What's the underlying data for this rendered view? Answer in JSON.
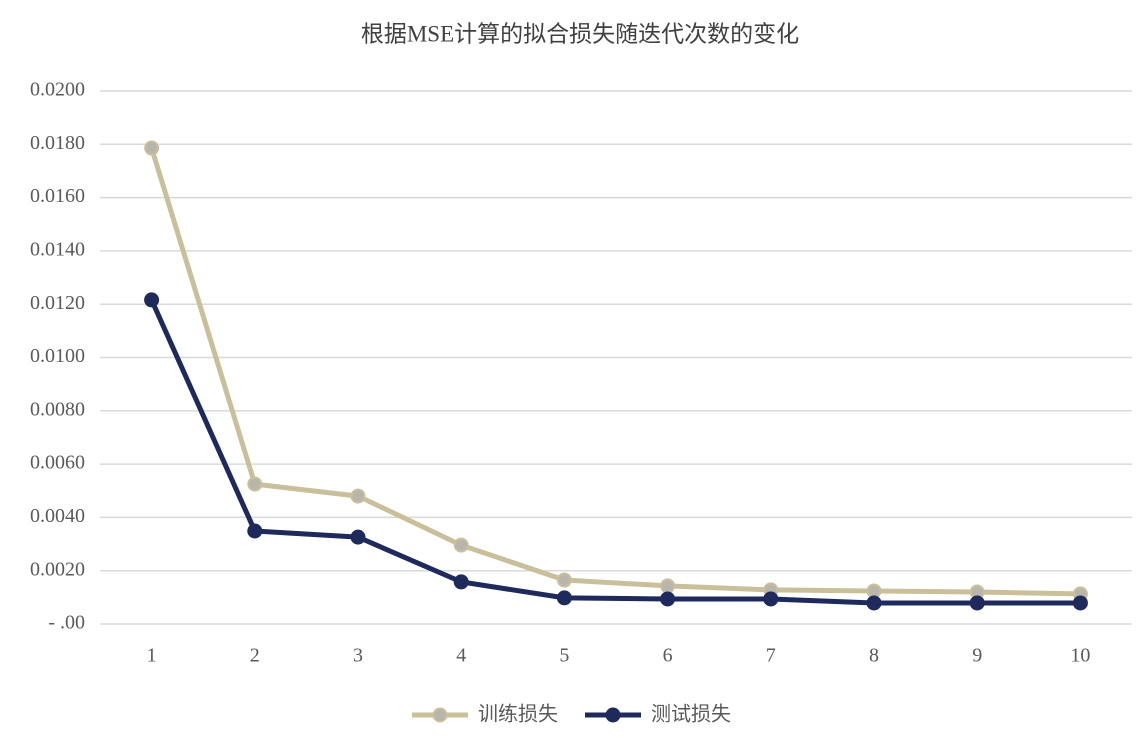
{
  "chart_data": {
    "type": "line",
    "title": "根据MSE计算的拟合损失随迭代次数的变化",
    "categories": [
      "1",
      "2",
      "3",
      "4",
      "5",
      "6",
      "7",
      "8",
      "9",
      "10"
    ],
    "series": [
      {
        "name": "训练损失",
        "color": "#c9c09b",
        "marker_color": "#b8b5ad",
        "values": [
          0.01786,
          0.00525,
          0.0048,
          0.00296,
          0.00165,
          0.00143,
          0.00128,
          0.00124,
          0.0012,
          0.00113
        ]
      },
      {
        "name": "测试损失",
        "color": "#1f2a5c",
        "marker_color": "#1f2a5c",
        "values": [
          0.01216,
          0.00349,
          0.00326,
          0.00158,
          0.00098,
          0.00094,
          0.00094,
          0.00079,
          0.00079,
          0.00079
        ]
      }
    ],
    "ylim": [
      0,
      0.02
    ],
    "yticks": [
      {
        "value": 0,
        "label": "-  .00"
      },
      {
        "value": 0.002,
        "label": "0.0020"
      },
      {
        "value": 0.004,
        "label": "0.0040"
      },
      {
        "value": 0.006,
        "label": "0.0060"
      },
      {
        "value": 0.008,
        "label": "0.0080"
      },
      {
        "value": 0.01,
        "label": "0.0100"
      },
      {
        "value": 0.012,
        "label": "0.0120"
      },
      {
        "value": 0.014,
        "label": "0.0140"
      },
      {
        "value": 0.016,
        "label": "0.0160"
      },
      {
        "value": 0.018,
        "label": "0.0180"
      },
      {
        "value": 0.02,
        "label": "0.0200"
      }
    ],
    "grid": true,
    "legend": "bottom"
  }
}
